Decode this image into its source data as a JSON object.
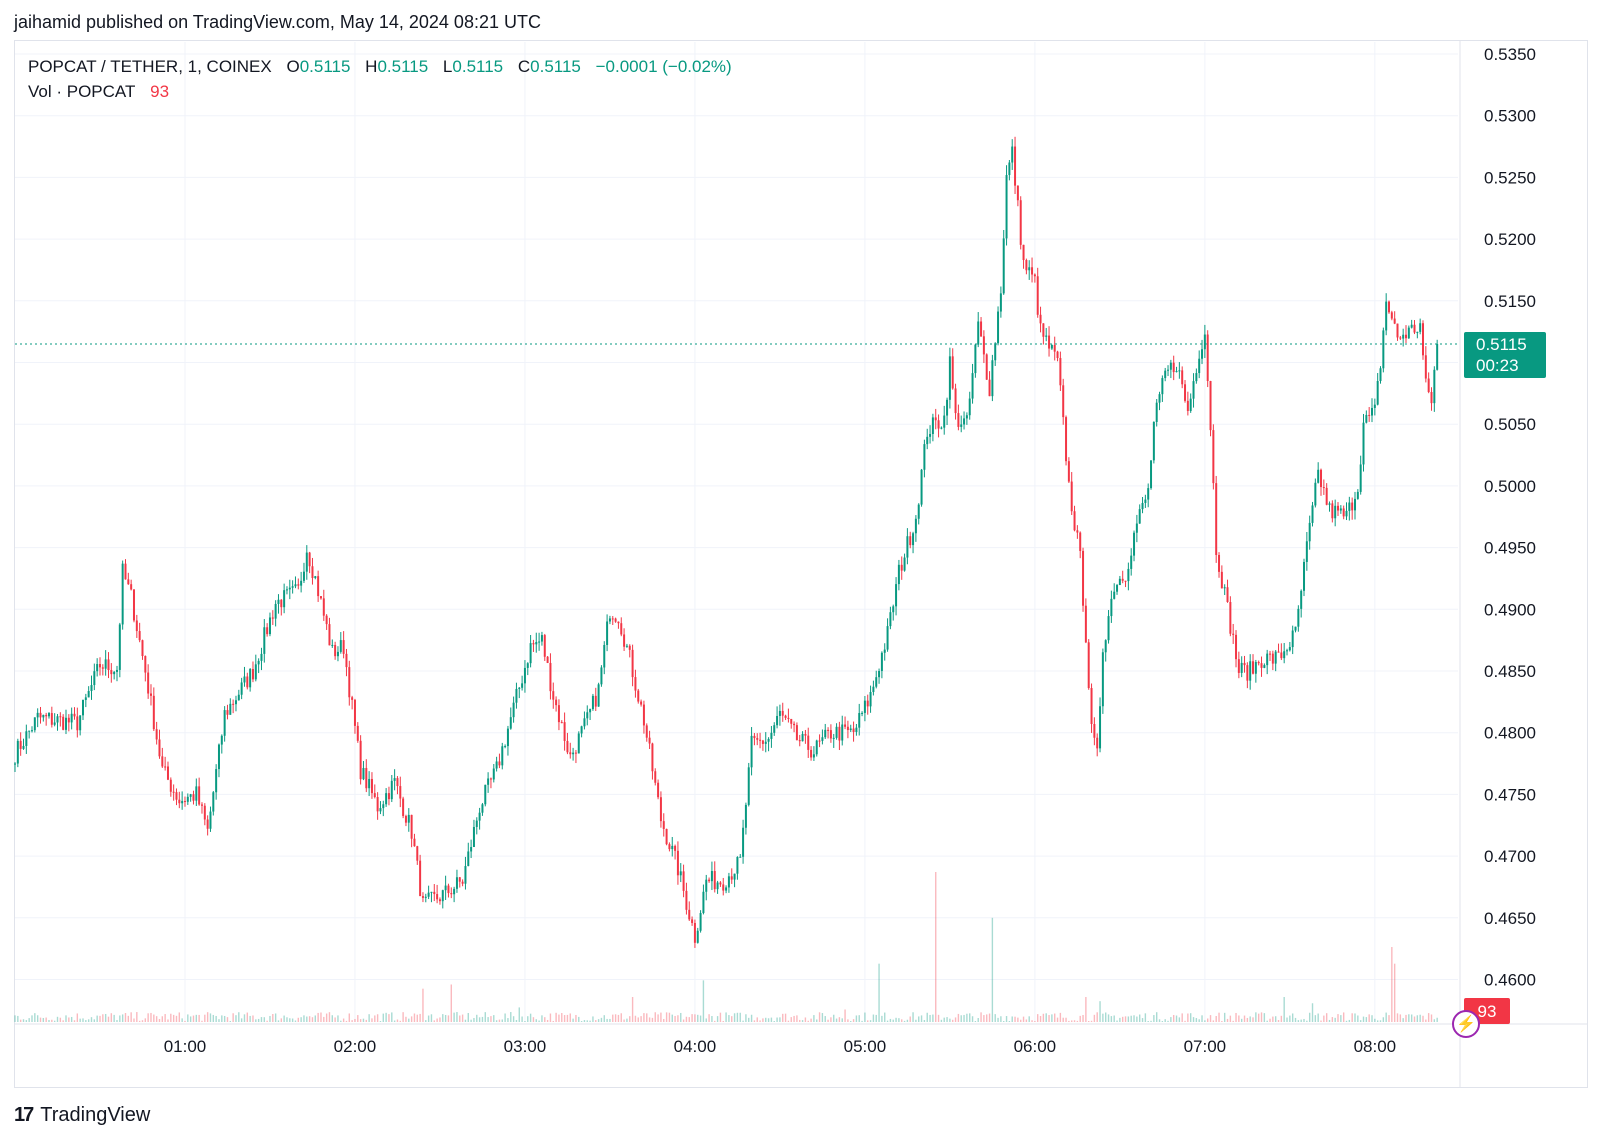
{
  "header": {
    "published_text": "jaihamid published on TradingView.com, May 14, 2024 08:21 UTC"
  },
  "legend": {
    "symbol": "POPCAT / TETHER, 1, COINEX",
    "open_label": "O",
    "open_value": "0.5115",
    "high_label": "H",
    "high_value": "0.5115",
    "low_label": "L",
    "low_value": "0.5115",
    "close_label": "C",
    "close_value": "0.5115",
    "change": "−0.0001 (−0.02%)",
    "volume_label": "Vol · POPCAT",
    "volume_value": "93"
  },
  "price_tag": {
    "price": "0.5115",
    "countdown": "00:23"
  },
  "volume_tag": {
    "value": "93"
  },
  "footer": {
    "brand": "TradingView",
    "logo_mark": "17"
  },
  "icons": {
    "bolt": "lightning-icon"
  },
  "colors": {
    "up": "#089981",
    "down": "#f23645",
    "grid": "#f0f3fa",
    "price_line": "#089981"
  },
  "chart_data": {
    "type": "candlestick",
    "title": "POPCAT / TETHER, 1, COINEX",
    "timeframe": "1 minute",
    "ylim": [
      0.4565,
      0.5365
    ],
    "yticks": [
      "0.4600",
      "0.4650",
      "0.4700",
      "0.4750",
      "0.4800",
      "0.4850",
      "0.4900",
      "0.4950",
      "0.5000",
      "0.5050",
      "0.5100",
      "0.5150",
      "0.5200",
      "0.5250",
      "0.5300",
      "0.5350"
    ],
    "xticks": [
      {
        "label": "01:00",
        "minute": 60
      },
      {
        "label": "02:00",
        "minute": 120
      },
      {
        "label": "03:00",
        "minute": 180
      },
      {
        "label": "04:00",
        "minute": 240
      },
      {
        "label": "05:00",
        "minute": 300
      },
      {
        "label": "06:00",
        "minute": 360
      },
      {
        "label": "07:00",
        "minute": 420
      },
      {
        "label": "08:00",
        "minute": 480
      }
    ],
    "x_start_minute": 0,
    "x_end_minute": 502,
    "last_price": 0.5115,
    "anchors": [
      [
        0,
        0.4783
      ],
      [
        8,
        0.4812
      ],
      [
        22,
        0.4808
      ],
      [
        30,
        0.4855
      ],
      [
        36,
        0.4852
      ],
      [
        38,
        0.493
      ],
      [
        41,
        0.491
      ],
      [
        46,
        0.485
      ],
      [
        52,
        0.477
      ],
      [
        58,
        0.4745
      ],
      [
        64,
        0.475
      ],
      [
        68,
        0.472
      ],
      [
        74,
        0.4815
      ],
      [
        84,
        0.485
      ],
      [
        92,
        0.4905
      ],
      [
        100,
        0.4915
      ],
      [
        103,
        0.495
      ],
      [
        106,
        0.4925
      ],
      [
        112,
        0.4865
      ],
      [
        116,
        0.487
      ],
      [
        122,
        0.477
      ],
      [
        128,
        0.474
      ],
      [
        134,
        0.476
      ],
      [
        140,
        0.472
      ],
      [
        144,
        0.466
      ],
      [
        152,
        0.467
      ],
      [
        158,
        0.468
      ],
      [
        164,
        0.474
      ],
      [
        170,
        0.477
      ],
      [
        176,
        0.482
      ],
      [
        182,
        0.487
      ],
      [
        186,
        0.4875
      ],
      [
        190,
        0.483
      ],
      [
        196,
        0.478
      ],
      [
        202,
        0.481
      ],
      [
        206,
        0.4835
      ],
      [
        210,
        0.49
      ],
      [
        213,
        0.4895
      ],
      [
        217,
        0.486
      ],
      [
        222,
        0.481
      ],
      [
        228,
        0.473
      ],
      [
        234,
        0.469
      ],
      [
        240,
        0.4635
      ],
      [
        244,
        0.468
      ],
      [
        250,
        0.468
      ],
      [
        256,
        0.4695
      ],
      [
        260,
        0.479
      ],
      [
        266,
        0.4795
      ],
      [
        270,
        0.4815
      ],
      [
        276,
        0.4795
      ],
      [
        282,
        0.4785
      ],
      [
        288,
        0.48
      ],
      [
        296,
        0.48
      ],
      [
        302,
        0.483
      ],
      [
        308,
        0.488
      ],
      [
        312,
        0.493
      ],
      [
        318,
        0.4975
      ],
      [
        322,
        0.5045
      ],
      [
        328,
        0.5055
      ],
      [
        330,
        0.51
      ],
      [
        332,
        0.5055
      ],
      [
        336,
        0.505
      ],
      [
        340,
        0.513
      ],
      [
        344,
        0.508
      ],
      [
        348,
        0.516
      ],
      [
        350,
        0.525
      ],
      [
        352,
        0.527
      ],
      [
        356,
        0.518
      ],
      [
        360,
        0.5165
      ],
      [
        362,
        0.5125
      ],
      [
        368,
        0.51
      ],
      [
        372,
        0.5
      ],
      [
        374,
        0.497
      ],
      [
        376,
        0.494
      ],
      [
        378,
        0.488
      ],
      [
        380,
        0.48
      ],
      [
        382,
        0.478
      ],
      [
        384,
        0.487
      ],
      [
        388,
        0.492
      ],
      [
        392,
        0.493
      ],
      [
        396,
        0.497
      ],
      [
        400,
        0.4995
      ],
      [
        402,
        0.505
      ],
      [
        406,
        0.509
      ],
      [
        410,
        0.51
      ],
      [
        414,
        0.506
      ],
      [
        418,
        0.511
      ],
      [
        420,
        0.5125
      ],
      [
        422,
        0.505
      ],
      [
        424,
        0.495
      ],
      [
        428,
        0.49
      ],
      [
        432,
        0.485
      ],
      [
        436,
        0.485
      ],
      [
        440,
        0.486
      ],
      [
        446,
        0.486
      ],
      [
        452,
        0.488
      ],
      [
        456,
        0.495
      ],
      [
        460,
        0.501
      ],
      [
        464,
        0.498
      ],
      [
        470,
        0.4975
      ],
      [
        474,
        0.5
      ],
      [
        476,
        0.505
      ],
      [
        480,
        0.506
      ],
      [
        482,
        0.51
      ],
      [
        484,
        0.515
      ],
      [
        488,
        0.512
      ],
      [
        492,
        0.5125
      ],
      [
        496,
        0.513
      ],
      [
        498,
        0.508
      ],
      [
        500,
        0.507
      ],
      [
        502,
        0.5115
      ]
    ],
    "volume": {
      "last_value": 93,
      "spikes": [
        {
          "minute": 144,
          "value": 8000
        },
        {
          "minute": 154,
          "value": 9000
        },
        {
          "minute": 178,
          "value": 3500
        },
        {
          "minute": 218,
          "value": 6000
        },
        {
          "minute": 243,
          "value": 10000
        },
        {
          "minute": 293,
          "value": 3000
        },
        {
          "minute": 305,
          "value": 14000
        },
        {
          "minute": 325,
          "value": 36000
        },
        {
          "minute": 345,
          "value": 25000
        },
        {
          "minute": 383,
          "value": 5000
        },
        {
          "minute": 378,
          "value": 6000
        },
        {
          "minute": 448,
          "value": 6000
        },
        {
          "minute": 458,
          "value": 4500
        },
        {
          "minute": 486,
          "value": 18000
        },
        {
          "minute": 487,
          "value": 14000
        }
      ],
      "scale_max": 60000
    }
  }
}
